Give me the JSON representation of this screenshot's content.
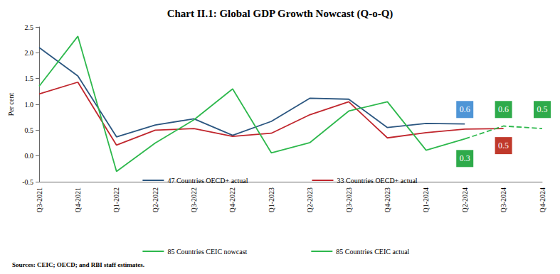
{
  "chart_data": {
    "type": "line",
    "title": "Chart II.1: Global GDP Growth Nowcast (Q-o-Q)",
    "source": "Sources: CEIC; OECD; and RBI staff estimates.",
    "y_label": "Per cent",
    "categories": [
      "Q3-2021",
      "Q4-2021",
      "Q1-2022",
      "Q2-2022",
      "Q3-2022",
      "Q4-2022",
      "Q1-2023",
      "Q2-2023",
      "Q3-2023",
      "Q4-2023",
      "Q1-2024",
      "Q2-2024",
      "Q3-2024",
      "Q4-2024"
    ],
    "series": [
      {
        "name": "47 Countries OECD+ actual",
        "color": "#2b5680",
        "line_style": "solid",
        "values": [
          2.1,
          1.55,
          0.37,
          0.6,
          0.72,
          0.4,
          0.67,
          1.12,
          1.1,
          0.55,
          0.63,
          0.62,
          null,
          null
        ]
      },
      {
        "name": "33 Countries OECD+ actual",
        "color": "#c0262d",
        "line_style": "solid",
        "values": [
          1.2,
          1.43,
          0.21,
          0.5,
          0.53,
          0.38,
          0.44,
          0.8,
          1.05,
          0.35,
          0.45,
          0.52,
          0.53,
          null
        ]
      },
      {
        "name": "85 Countries CEIC nowcast",
        "color": "#2db84c",
        "line_style": "dashed",
        "values": [
          null,
          null,
          null,
          null,
          null,
          null,
          null,
          null,
          null,
          null,
          null,
          0.33,
          0.58,
          0.53
        ]
      },
      {
        "name": "85 Countries CEIC actual",
        "color": "#2db84c",
        "line_style": "solid",
        "values": [
          1.35,
          2.32,
          -0.3,
          0.25,
          0.7,
          1.3,
          0.06,
          0.26,
          0.87,
          1.05,
          0.11,
          0.33,
          null,
          null
        ]
      }
    ],
    "annotations": [
      {
        "text": "0.6",
        "x": "Q2-2024",
        "y": 0.9,
        "color": "#4f95d6"
      },
      {
        "text": "0.3",
        "x": "Q2-2024",
        "y": -0.05,
        "color": "#2eaa4a"
      },
      {
        "text": "0.6",
        "x": "Q3-2024",
        "y": 0.9,
        "color": "#2eaa4a"
      },
      {
        "text": "0.5",
        "x": "Q3-2024",
        "y": 0.2,
        "color": "#c0392b"
      },
      {
        "text": "0.5",
        "x": "Q4-2024",
        "y": 0.9,
        "color": "#2eaa4a"
      }
    ],
    "ylim": [
      -0.5,
      2.5
    ],
    "yticks": [
      -0.5,
      {
        "value": 0,
        "label": "0.0"
      },
      0.5,
      {
        "value": 1,
        "label": "1.0"
      },
      1.5,
      {
        "value": 2,
        "label": "2.0"
      },
      2.5
    ],
    "grid": false,
    "marker": "none",
    "legend": "bottom"
  }
}
